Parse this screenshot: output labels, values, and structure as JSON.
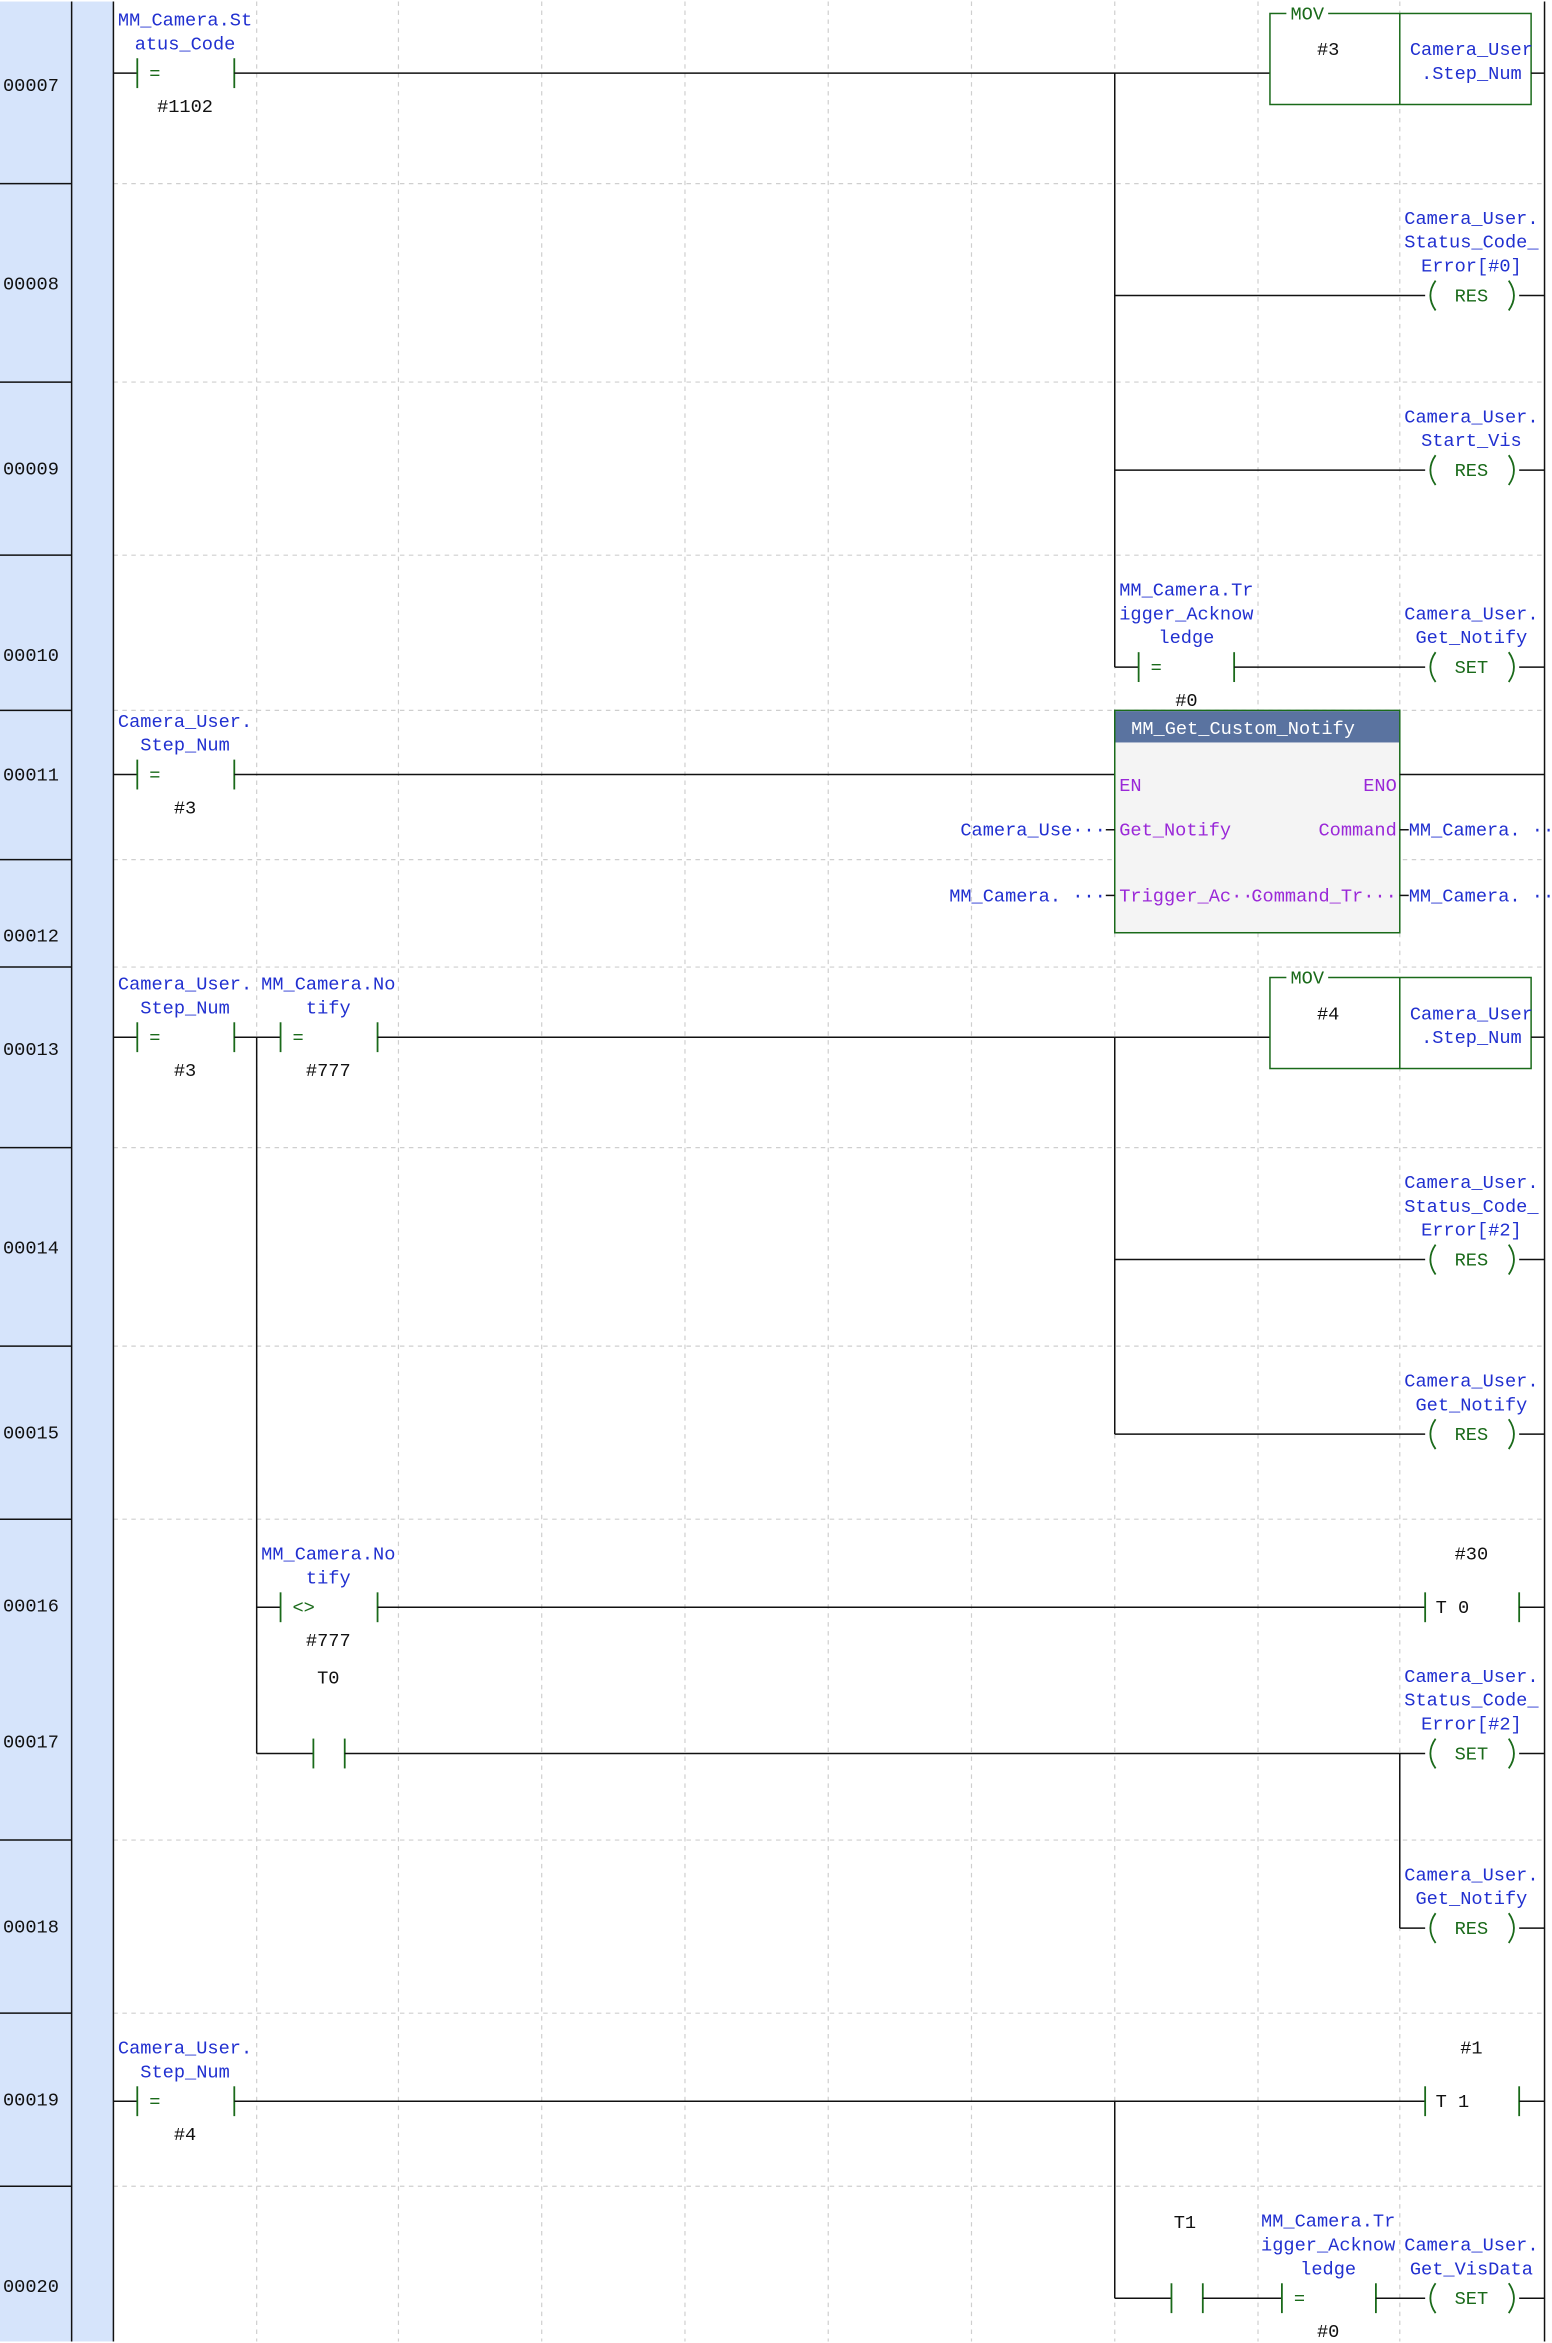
{
  "colors": {
    "sidebar": "#d6e4fb",
    "label": "#2130d0",
    "pin": "#9a28d8",
    "block_header": "#5a73a0",
    "contact": "#1a6a1a"
  },
  "rung_numbers": [
    "00007",
    "00008",
    "00009",
    "00010",
    "00011",
    "00012",
    "00013",
    "00014",
    "00015",
    "00016",
    "00017",
    "00018",
    "00019",
    "00020"
  ],
  "r7": {
    "op": [
      "MM_Camera.St",
      "atus_Code"
    ],
    "cmp": "=",
    "val": "#1102",
    "mov": "MOV",
    "src": "#3",
    "dst": [
      "Camera_User",
      ".Step_Num"
    ]
  },
  "r8": {
    "op": [
      "Camera_User.",
      "Status_Code_",
      "Error[#0]"
    ],
    "coil": "RES"
  },
  "r9": {
    "op": [
      "Camera_User.",
      "Start_Vis"
    ],
    "coil": "RES"
  },
  "r10": {
    "c_op": [
      "MM_Camera.Tr",
      "igger_Acknow",
      "ledge"
    ],
    "cmp": "=",
    "val": "#0",
    "op": [
      "Camera_User.",
      "Get_Notify"
    ],
    "coil": "SET"
  },
  "r11": {
    "op": [
      "Camera_User.",
      "Step_Num"
    ],
    "cmp": "=",
    "val": "#3",
    "block": {
      "title": "MM_Get_Custom_Notify",
      "en": "EN",
      "eno": "ENO",
      "in1": "Get_Notify",
      "in2": "Trigger_Ac···",
      "out1": "Command",
      "out2": "Command_Tr···",
      "in1_var": "Camera_Use···",
      "in2_var": "MM_Camera. ···",
      "out1_var": "MM_Camera. ···",
      "out2_var": "MM_Camera. ···"
    }
  },
  "r13": {
    "op1": [
      "Camera_User.",
      "Step_Num"
    ],
    "cmp1": "=",
    "val1": "#3",
    "op2": [
      "MM_Camera.No",
      "tify"
    ],
    "cmp2": "=",
    "val2": "#777",
    "mov": "MOV",
    "src": "#4",
    "dst": [
      "Camera_User",
      ".Step_Num"
    ]
  },
  "r14": {
    "op": [
      "Camera_User.",
      "Status_Code_",
      "Error[#2]"
    ],
    "coil": "RES"
  },
  "r15": {
    "op": [
      "Camera_User.",
      "Get_Notify"
    ],
    "coil": "RES"
  },
  "r16": {
    "op": [
      "MM_Camera.No",
      "tify"
    ],
    "cmp": "<>",
    "val": "#777",
    "timer": "T 0",
    "preset": "#30"
  },
  "r17": {
    "contact": "T0",
    "op": [
      "Camera_User.",
      "Status_Code_",
      "Error[#2]"
    ],
    "coil": "SET"
  },
  "r18": {
    "op": [
      "Camera_User.",
      "Get_Notify"
    ],
    "coil": "RES"
  },
  "r19": {
    "op": [
      "Camera_User.",
      "Step_Num"
    ],
    "cmp": "=",
    "val": "#4",
    "timer": "T 1",
    "preset": "#1"
  },
  "r20": {
    "contact": "T1",
    "c_op": [
      "MM_Camera.Tr",
      "igger_Acknow",
      "ledge"
    ],
    "cmp": "=",
    "val": "#0",
    "op": [
      "Camera_User.",
      "Get_VisData"
    ],
    "coil": "SET"
  }
}
